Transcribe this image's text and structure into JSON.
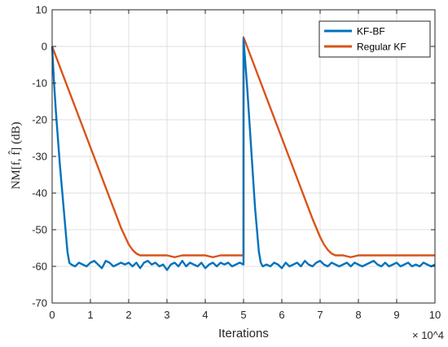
{
  "chart_data": {
    "type": "line",
    "xlabel": "Iterations",
    "ylabel": "NM[f, f̂] (dB)",
    "x_multiplier": "× 10^4",
    "xlim": [
      0,
      100000
    ],
    "ylim": [
      -70,
      10
    ],
    "xticks": [
      0,
      10000,
      20000,
      30000,
      40000,
      50000,
      60000,
      70000,
      80000,
      90000,
      100000
    ],
    "xtick_labels": [
      "0",
      "1",
      "2",
      "3",
      "4",
      "5",
      "6",
      "7",
      "8",
      "9",
      "10"
    ],
    "yticks": [
      -70,
      -60,
      -50,
      -40,
      -30,
      -20,
      -10,
      0,
      10
    ],
    "ytick_labels": [
      "-70",
      "-60",
      "-50",
      "-40",
      "-30",
      "-20",
      "-10",
      "0",
      "10"
    ],
    "grid": true,
    "legend_position": "top-right",
    "series": [
      {
        "name": "KF-BF",
        "color": "#0072BD",
        "x": [
          0,
          500,
          1000,
          1500,
          2000,
          2500,
          3000,
          3500,
          4000,
          4500,
          5000,
          6000,
          7000,
          8000,
          9000,
          10000,
          11000,
          12000,
          13000,
          14000,
          15000,
          16000,
          17000,
          18000,
          19000,
          20000,
          21000,
          22000,
          23000,
          24000,
          25000,
          26000,
          27000,
          28000,
          29000,
          30000,
          31000,
          32000,
          33000,
          34000,
          35000,
          36000,
          37000,
          38000,
          39000,
          40000,
          41000,
          42000,
          43000,
          44000,
          45000,
          46000,
          47000,
          48000,
          49000,
          49990,
          50000,
          50500,
          51000,
          51500,
          52000,
          52500,
          53000,
          53500,
          54000,
          54500,
          55000,
          56000,
          57000,
          58000,
          59000,
          60000,
          61000,
          62000,
          63000,
          64000,
          65000,
          66000,
          67000,
          68000,
          69000,
          70000,
          71000,
          72000,
          73000,
          74000,
          75000,
          76000,
          77000,
          78000,
          79000,
          80000,
          81000,
          82000,
          83000,
          84000,
          85000,
          86000,
          87000,
          88000,
          89000,
          90000,
          91000,
          92000,
          93000,
          94000,
          95000,
          96000,
          97000,
          98000,
          99000,
          100000
        ],
        "values": [
          0,
          -10,
          -18,
          -25,
          -32,
          -38,
          -44,
          -50,
          -56,
          -59,
          -59.5,
          -60,
          -59,
          -59.5,
          -60,
          -59,
          -58.5,
          -59.5,
          -60.5,
          -58.5,
          -59,
          -60,
          -59.5,
          -59,
          -59.5,
          -59,
          -60,
          -59,
          -60.5,
          -59,
          -58.5,
          -59.5,
          -59,
          -60,
          -59.5,
          -61,
          -59.5,
          -59,
          -60,
          -58.5,
          -60,
          -59,
          -59.5,
          -60,
          -59,
          -60.5,
          -59.5,
          -59,
          -60,
          -59,
          -59.5,
          -59,
          -60,
          -59.5,
          -59,
          -59.5,
          2,
          -5,
          -12,
          -20,
          -28,
          -36,
          -44,
          -50,
          -56,
          -59,
          -60,
          -59.5,
          -60,
          -59,
          -59.5,
          -60.5,
          -59,
          -60,
          -59.5,
          -59,
          -60,
          -58.5,
          -59.5,
          -60,
          -59,
          -58.5,
          -59.5,
          -60,
          -59,
          -59.5,
          -60,
          -59.5,
          -59,
          -60,
          -59,
          -59.5,
          -60,
          -59.5,
          -59,
          -58.5,
          -59.5,
          -60,
          -59,
          -60,
          -59.5,
          -59,
          -60,
          -59.5,
          -59,
          -60,
          -59.5,
          -60,
          -59,
          -59.5,
          -60,
          -59.5
        ]
      },
      {
        "name": "Regular KF",
        "color": "#D95319",
        "x": [
          0,
          2000,
          4000,
          6000,
          8000,
          10000,
          12000,
          14000,
          16000,
          18000,
          20000,
          21000,
          22000,
          23000,
          24000,
          25000,
          26000,
          28000,
          30000,
          32000,
          34000,
          36000,
          38000,
          40000,
          42000,
          44000,
          46000,
          48000,
          49990,
          50000,
          52000,
          54000,
          56000,
          58000,
          60000,
          62000,
          64000,
          66000,
          68000,
          70000,
          71000,
          72000,
          73000,
          74000,
          75000,
          76000,
          78000,
          80000,
          82000,
          84000,
          86000,
          88000,
          90000,
          92000,
          94000,
          96000,
          98000,
          100000
        ],
        "values": [
          0,
          -5.5,
          -11,
          -16.5,
          -22,
          -27.5,
          -33,
          -38.5,
          -44,
          -49.5,
          -54,
          -55.5,
          -56.5,
          -57,
          -57,
          -57,
          -57,
          -57,
          -57,
          -57.5,
          -57,
          -57,
          -57,
          -57,
          -57.5,
          -57,
          -57,
          -57,
          -57,
          2.5,
          -3,
          -8.5,
          -14,
          -19.5,
          -25,
          -30.5,
          -36,
          -41.5,
          -47,
          -52,
          -54,
          -55.5,
          -56.5,
          -57,
          -57,
          -57,
          -57.5,
          -57,
          -57,
          -57,
          -57,
          -57,
          -57,
          -57,
          -57,
          -57,
          -57,
          -57
        ]
      }
    ]
  }
}
